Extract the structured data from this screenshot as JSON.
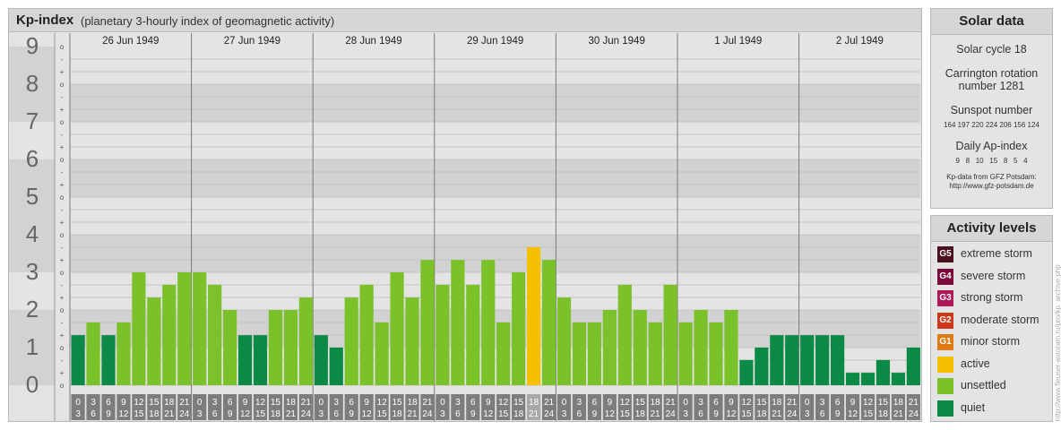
{
  "title": "Kp-index",
  "subtitle": "(planetary 3-hourly index of geomagnetic activity)",
  "chart_data": {
    "type": "bar",
    "y_axis_labels": [
      "9",
      "8",
      "7",
      "6",
      "5",
      "4",
      "3",
      "2",
      "1",
      "0"
    ],
    "sub_ticks": [
      "o",
      "-",
      "+"
    ],
    "ylim": [
      0,
      9
    ],
    "days": [
      "26 Jun 1949",
      "27 Jun 1949",
      "28 Jun 1949",
      "29 Jun 1949",
      "30 Jun 1949",
      "1 Jul 1949",
      "2 Jul 1949"
    ],
    "interval_labels": [
      [
        "0",
        "3"
      ],
      [
        "3",
        "6"
      ],
      [
        "6",
        "9"
      ],
      [
        "9",
        "12"
      ],
      [
        "12",
        "15"
      ],
      [
        "15",
        "18"
      ],
      [
        "18",
        "21"
      ],
      [
        "21",
        "24"
      ]
    ],
    "values": [
      1.33,
      1.67,
      1.33,
      1.67,
      3.0,
      2.33,
      2.67,
      3.0,
      3.0,
      2.67,
      2.0,
      1.33,
      1.33,
      2.0,
      2.0,
      2.33,
      1.33,
      1.0,
      2.33,
      2.67,
      1.67,
      3.0,
      2.33,
      3.33,
      2.67,
      3.33,
      2.67,
      3.33,
      1.67,
      3.0,
      3.67,
      3.33,
      2.33,
      1.67,
      1.67,
      2.0,
      2.67,
      2.0,
      1.67,
      2.67,
      1.67,
      2.0,
      1.67,
      2.0,
      0.67,
      1.0,
      1.33,
      1.33,
      1.33,
      1.33,
      1.33,
      0.33,
      0.33,
      0.67,
      0.33,
      1.0
    ],
    "highlight_interval": 30,
    "grid": true
  },
  "solar_data": {
    "title": "Solar data",
    "solar_cycle": "Solar cycle 18",
    "carrington_line1": "Carrington rotation",
    "carrington_line2": "number 1281",
    "sunspot_title": "Sunspot number",
    "sunspot_values": "164 197 220 224 206 156 124",
    "ap_title": "Daily Ap-index",
    "ap_values": "9   8   10   15   8   5   4",
    "source_line1": "Kp-data from GFZ Potsdam:",
    "source_line2": "http://www.gfz-potsdam.de"
  },
  "activity_levels": {
    "title": "Activity levels",
    "items": [
      {
        "code": "G5",
        "label": "extreme storm",
        "color": "#4a0e1e"
      },
      {
        "code": "G4",
        "label": "severe storm",
        "color": "#7b0a3a"
      },
      {
        "code": "G3",
        "label": "strong storm",
        "color": "#b0185a"
      },
      {
        "code": "G2",
        "label": "moderate storm",
        "color": "#cc3a1a"
      },
      {
        "code": "G1",
        "label": "minor storm",
        "color": "#e07a12"
      },
      {
        "code": "",
        "label": "active",
        "color": "#f5c000"
      },
      {
        "code": "",
        "label": "unsettled",
        "color": "#7bc12a"
      },
      {
        "code": "",
        "label": "quiet",
        "color": "#0b8a45"
      }
    ]
  },
  "credit": "http://www.fleuser-autoram.ru/pro/kp_archive.php",
  "colors": {
    "quiet": "#0b8a45",
    "unsettled": "#7bc12a",
    "active": "#f5c000"
  }
}
